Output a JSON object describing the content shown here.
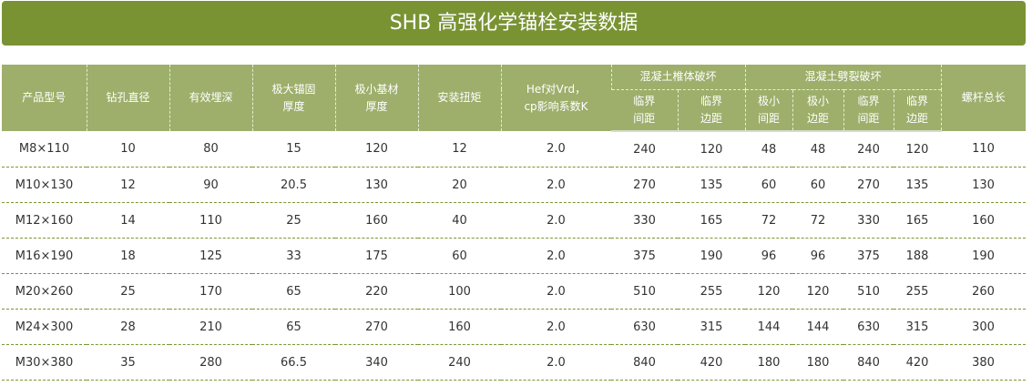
{
  "title": "SHB 高强化学锚栓安装数据",
  "headers": {
    "model": "产品型号",
    "drill": "钻孔直径",
    "embed": "有效埋深",
    "maxThick1": "极大锚固",
    "maxThick2": "厚度",
    "minBase1": "极小基材",
    "minBase2": "厚度",
    "torque": "安装扭矩",
    "hef1": "Hef对Vrd，",
    "hef2": "cp影响系数K",
    "cone": "混凝土椎体破坏",
    "split": "混凝土劈裂破坏",
    "length": "螺杆总长",
    "sub": [
      [
        "临界",
        "间距"
      ],
      [
        "临界",
        "边距"
      ],
      [
        "极小",
        "间距"
      ],
      [
        "极小",
        "边距"
      ],
      [
        "临界",
        "间距"
      ],
      [
        "临界",
        "边距"
      ]
    ]
  },
  "rows": [
    [
      "M8×110",
      "10",
      "80",
      "15",
      "120",
      "12",
      "2.0",
      "240",
      "120",
      "48",
      "48",
      "240",
      "120",
      "110"
    ],
    [
      "M10×130",
      "12",
      "90",
      "20.5",
      "130",
      "20",
      "2.0",
      "270",
      "135",
      "60",
      "60",
      "270",
      "135",
      "130"
    ],
    [
      "M12×160",
      "14",
      "110",
      "25",
      "160",
      "40",
      "2.0",
      "330",
      "165",
      "72",
      "72",
      "330",
      "165",
      "160"
    ],
    [
      "M16×190",
      "18",
      "125",
      "33",
      "175",
      "60",
      "2.0",
      "375",
      "190",
      "96",
      "96",
      "375",
      "188",
      "190"
    ],
    [
      "M20×260",
      "25",
      "170",
      "65",
      "220",
      "100",
      "2.0",
      "510",
      "255",
      "120",
      "120",
      "510",
      "255",
      "260"
    ],
    [
      "M24×300",
      "28",
      "210",
      "65",
      "270",
      "160",
      "2.0",
      "630",
      "315",
      "144",
      "144",
      "630",
      "315",
      "300"
    ],
    [
      "M30×380",
      "35",
      "280",
      "66.5",
      "340",
      "240",
      "2.0",
      "840",
      "420",
      "180",
      "180",
      "840",
      "420",
      "380"
    ]
  ],
  "colors": {
    "title_bg": "#799333",
    "header_bg": "#9daf6b"
  }
}
